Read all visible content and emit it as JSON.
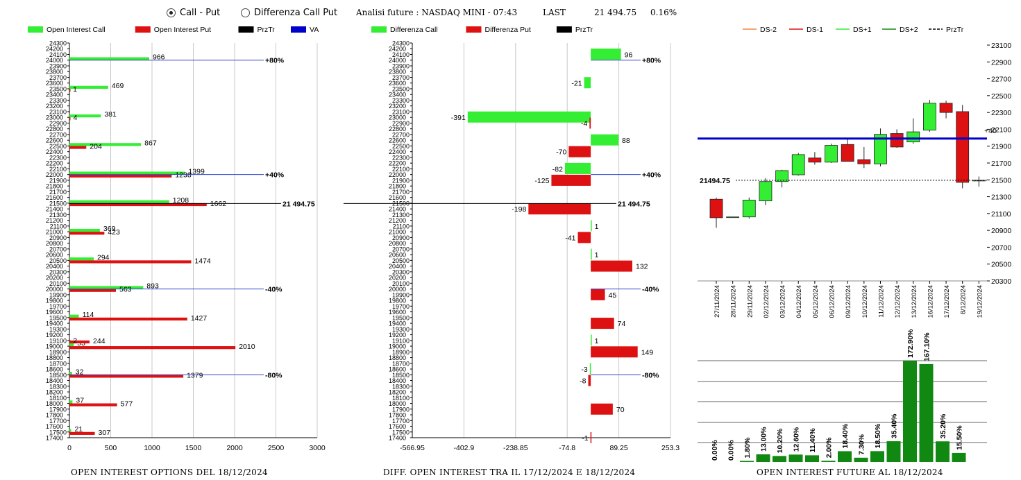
{
  "header": {
    "radio_call_put": "Call - Put",
    "radio_diff": "Differenza Call Put",
    "title": "Analisi future : NASDAQ MINI - 07:43",
    "last_label": "LAST",
    "last_value": "21 494.75",
    "last_change": "0.16%"
  },
  "colors": {
    "green": "#33ee33",
    "red": "#dd1111",
    "dark_green": "#118811",
    "blue": "#0000cc"
  },
  "chart_data": [
    {
      "type": "bar",
      "orientation": "horizontal",
      "title": "OPEN INTEREST OPTIONS DEL 18/12/2024",
      "legend": [
        "Open Interest Call",
        "Open Interest Put",
        "PrzTr",
        "VA"
      ],
      "legend_position": "top",
      "ylim": [
        17400,
        24300
      ],
      "ytick_step": 100,
      "xlim": [
        0,
        3000
      ],
      "xticks": [
        "0",
        "500",
        "1000",
        "1500",
        "2000",
        "2500",
        "3000"
      ],
      "series": [
        {
          "name": "Open Interest Call",
          "color": "#33ee33",
          "points": [
            {
              "strike": 24000,
              "value": 966,
              "label": "966"
            },
            {
              "strike": 23500,
              "value": 469,
              "label": "469"
            },
            {
              "strike": 23000,
              "value": 381,
              "label": "381"
            },
            {
              "strike": 22500,
              "value": 867,
              "label": "867"
            },
            {
              "strike": 22000,
              "value": 1399,
              "label": "1399"
            },
            {
              "strike": 21500,
              "value": 1208,
              "label": "1208"
            },
            {
              "strike": 21000,
              "value": 369,
              "label": "369"
            },
            {
              "strike": 20500,
              "value": 294,
              "label": "294"
            },
            {
              "strike": 20000,
              "value": 893,
              "label": "893"
            },
            {
              "strike": 19500,
              "value": 114,
              "label": "114"
            },
            {
              "strike": 19000,
              "value": 53,
              "label": "53"
            },
            {
              "strike": 18500,
              "value": 32,
              "label": "32"
            },
            {
              "strike": 18000,
              "value": 37,
              "label": "37"
            },
            {
              "strike": 17500,
              "value": 21,
              "label": "21"
            }
          ]
        },
        {
          "name": "Open Interest Put",
          "color": "#dd1111",
          "points": [
            {
              "strike": 24000,
              "value": 0,
              "label": ""
            },
            {
              "strike": 23500,
              "value": 1,
              "label": "1"
            },
            {
              "strike": 23000,
              "value": 4,
              "label": "4"
            },
            {
              "strike": 22500,
              "value": 204,
              "label": "204"
            },
            {
              "strike": 22000,
              "value": 1238,
              "label": "1238"
            },
            {
              "strike": 21500,
              "value": 1662,
              "label": "1662"
            },
            {
              "strike": 21000,
              "value": 423,
              "label": "423"
            },
            {
              "strike": 20500,
              "value": 1474,
              "label": "1474"
            },
            {
              "strike": 20000,
              "value": 563,
              "label": "563"
            },
            {
              "strike": 19500,
              "value": 1427,
              "label": "1427"
            },
            {
              "strike": 19000,
              "value": 2010,
              "label": "2010"
            },
            {
              "strike": 19100,
              "value": 244,
              "label": "244"
            },
            {
              "strike": 19101,
              "value": 2,
              "label": "2"
            },
            {
              "strike": 18500,
              "value": 1379,
              "label": "1379"
            },
            {
              "strike": 18000,
              "value": 577,
              "label": "577"
            },
            {
              "strike": 17500,
              "value": 307,
              "label": "307"
            }
          ]
        }
      ],
      "reference_lines": [
        {
          "y": 24000,
          "label": "+80%"
        },
        {
          "y": 22000,
          "label": "+40%"
        },
        {
          "y": 21494.75,
          "label": "21 494.75"
        },
        {
          "y": 20000,
          "label": "-40%"
        },
        {
          "y": 18500,
          "label": "-80%"
        }
      ]
    },
    {
      "type": "bar",
      "orientation": "horizontal",
      "title": "DIFF. OPEN INTEREST TRA IL 17/12/2024 E 18/12/2024",
      "legend": [
        "Differenza Call",
        "Differenza Put",
        "PrzTr"
      ],
      "legend_position": "top",
      "ylim": [
        17400,
        24300
      ],
      "ytick_step": 100,
      "xlim": [
        -566.95,
        253.3
      ],
      "xticks": [
        "-566.95",
        "-402.9",
        "-238.85",
        "-74.8",
        "89.25",
        "253.3"
      ],
      "series": [
        {
          "name": "Differenza Call",
          "color": "#33ee33",
          "points": [
            {
              "strike": 24100,
              "value": 96,
              "label": "96"
            },
            {
              "strike": 23600,
              "value": -21,
              "label": "-21"
            },
            {
              "strike": 23000,
              "value": -391,
              "label": "-391"
            },
            {
              "strike": 22600,
              "value": 88,
              "label": "88"
            },
            {
              "strike": 22100,
              "value": -82,
              "label": "-82"
            },
            {
              "strike": 21100,
              "value": 1,
              "label": "1"
            },
            {
              "strike": 20600,
              "value": 1,
              "label": "1"
            },
            {
              "strike": 19100,
              "value": 1,
              "label": "1"
            },
            {
              "strike": 18600,
              "value": -3,
              "label": "-3"
            }
          ]
        },
        {
          "name": "Differenza Put",
          "color": "#dd1111",
          "points": [
            {
              "strike": 22900,
              "value": -4,
              "label": "-4"
            },
            {
              "strike": 22400,
              "value": -70,
              "label": "-70"
            },
            {
              "strike": 21900,
              "value": -125,
              "label": "-125"
            },
            {
              "strike": 21400,
              "value": -198,
              "label": "-198"
            },
            {
              "strike": 20900,
              "value": -41,
              "label": "-41"
            },
            {
              "strike": 20400,
              "value": 132,
              "label": "132"
            },
            {
              "strike": 19900,
              "value": 45,
              "label": "45"
            },
            {
              "strike": 19400,
              "value": 74,
              "label": "74"
            },
            {
              "strike": 18900,
              "value": 149,
              "label": "149"
            },
            {
              "strike": 18400,
              "value": -8,
              "label": "-8"
            },
            {
              "strike": 17900,
              "value": 70,
              "label": "70"
            },
            {
              "strike": 17400,
              "value": -1,
              "label": "-1"
            }
          ]
        }
      ],
      "reference_lines": [
        {
          "y": 24000,
          "label": "+80%"
        },
        {
          "y": 22000,
          "label": "+40%"
        },
        {
          "y": 21494.75,
          "label": "21 494.75"
        },
        {
          "y": 20000,
          "label": "-40%"
        },
        {
          "y": 18500,
          "label": "-80%"
        }
      ]
    },
    {
      "type": "candlestick",
      "title": "",
      "legend": [
        "DS-2",
        "DS-1",
        "DS+1",
        "DS+2",
        "PrzTr"
      ],
      "legend_position": "top",
      "ylim": [
        20300,
        23100
      ],
      "yticks": [
        "23100",
        "22900",
        "22700",
        "22500",
        "22300",
        "22100",
        "21900",
        "21700",
        "21500",
        "21300",
        "21100",
        "20900",
        "20700",
        "20500",
        "20300"
      ],
      "categories": [
        "27/11/2024",
        "28/11/2024",
        "29/11/2024",
        "02/12/2024",
        "03/12/2024",
        "04/12/2024",
        "05/12/2024",
        "06/12/2024",
        "09/12/2024",
        "10/12/2024",
        "11/12/2024",
        "12/12/2024",
        "13/12/2024",
        "16/12/2024",
        "17/12/2024",
        "8/12/2024",
        "19/12/2024"
      ],
      "candles": [
        {
          "o": 21270,
          "h": 21290,
          "l": 20930,
          "c": 21050
        },
        {
          "o": 21060,
          "h": 21060,
          "l": 21060,
          "c": 21060
        },
        {
          "o": 21060,
          "h": 21290,
          "l": 21040,
          "c": 21260
        },
        {
          "o": 21250,
          "h": 21520,
          "l": 21200,
          "c": 21480
        },
        {
          "o": 21480,
          "h": 21620,
          "l": 21410,
          "c": 21610
        },
        {
          "o": 21560,
          "h": 21820,
          "l": 21550,
          "c": 21800
        },
        {
          "o": 21760,
          "h": 21830,
          "l": 21680,
          "c": 21710
        },
        {
          "o": 21710,
          "h": 21930,
          "l": 21700,
          "c": 21910
        },
        {
          "o": 21920,
          "h": 22000,
          "l": 21720,
          "c": 21720
        },
        {
          "o": 21740,
          "h": 21890,
          "l": 21640,
          "c": 21690
        },
        {
          "o": 21690,
          "h": 22110,
          "l": 21660,
          "c": 22040
        },
        {
          "o": 22050,
          "h": 22100,
          "l": 21880,
          "c": 21890
        },
        {
          "o": 21950,
          "h": 22230,
          "l": 21930,
          "c": 22070
        },
        {
          "o": 22090,
          "h": 22450,
          "l": 22070,
          "c": 22410
        },
        {
          "o": 22410,
          "h": 22440,
          "l": 22230,
          "c": 22300
        },
        {
          "o": 22310,
          "h": 22390,
          "l": 21400,
          "c": 21470
        },
        {
          "o": 21495,
          "h": 21540,
          "l": 21420,
          "c": 21495
        }
      ],
      "reference_lines": [
        {
          "y": 21990,
          "label": "+40",
          "color": "#0000cc"
        },
        {
          "y": 21494.75,
          "label": "21494.75",
          "style": "dashed"
        }
      ]
    },
    {
      "type": "bar",
      "title": "OPEN INTEREST FUTURE AL 18/12/2024",
      "values": [
        0.0,
        0.0,
        1.8,
        13.0,
        10.2,
        12.6,
        11.4,
        2.0,
        18.4,
        7.3,
        18.5,
        35.4,
        172.9,
        167.1,
        35.2,
        15.5
      ],
      "labels": [
        "0.00%",
        "0.00%",
        "1.80%",
        "13.00%",
        "10.20%",
        "12.60%",
        "11.40%",
        "2.00%",
        "18.40%",
        "7.30%",
        "18.50%",
        "35.40%",
        "172.90%",
        "167.10%",
        "35.20%",
        "15.50%"
      ]
    }
  ]
}
